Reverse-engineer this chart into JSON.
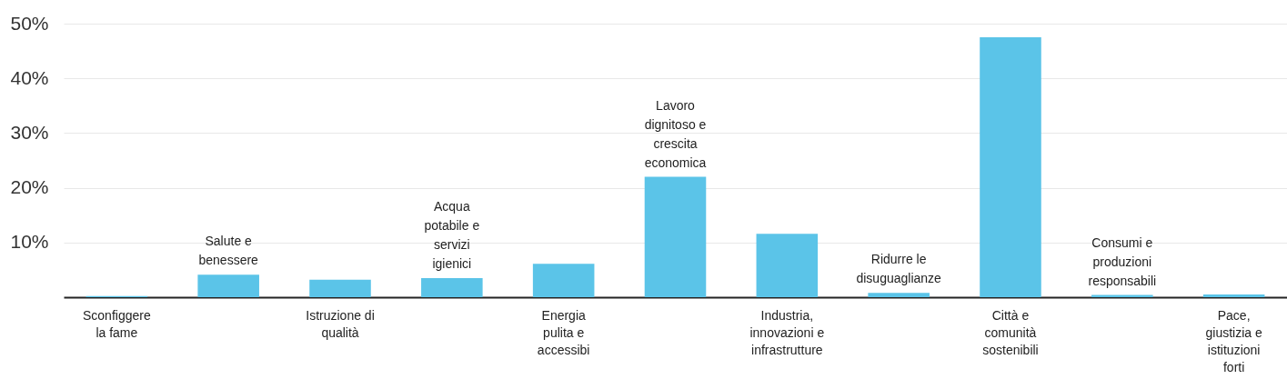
{
  "chart_data": {
    "type": "bar",
    "categories": [
      "Sconfiggere la fame",
      "Salute e benessere",
      "Istruzione di qualità",
      "Acqua potabile e servizi igienici",
      "Energia pulita e accessibi",
      "Lavoro dignitoso e crescita economica",
      "Industria, innovazioni e infrastrutture",
      "Ridurre le disuguaglianze",
      "Città e comunità sostenibili",
      "Consumi e produzioni responsabili",
      "Pace, giustizia e istituzioni forti"
    ],
    "values": [
      0.2,
      4.1,
      3.2,
      3.5,
      6.1,
      22.0,
      11.6,
      0.8,
      47.5,
      0.4,
      0.5
    ],
    "color": "#5bc4e8",
    "ylim": [
      0,
      50
    ],
    "yticks": [
      {
        "value": 10,
        "label": "10%"
      },
      {
        "value": 20,
        "label": "20%"
      },
      {
        "value": 30,
        "label": "30%"
      },
      {
        "value": 40,
        "label": "40%"
      },
      {
        "value": 50,
        "label": "50%"
      }
    ],
    "grid": "y"
  }
}
